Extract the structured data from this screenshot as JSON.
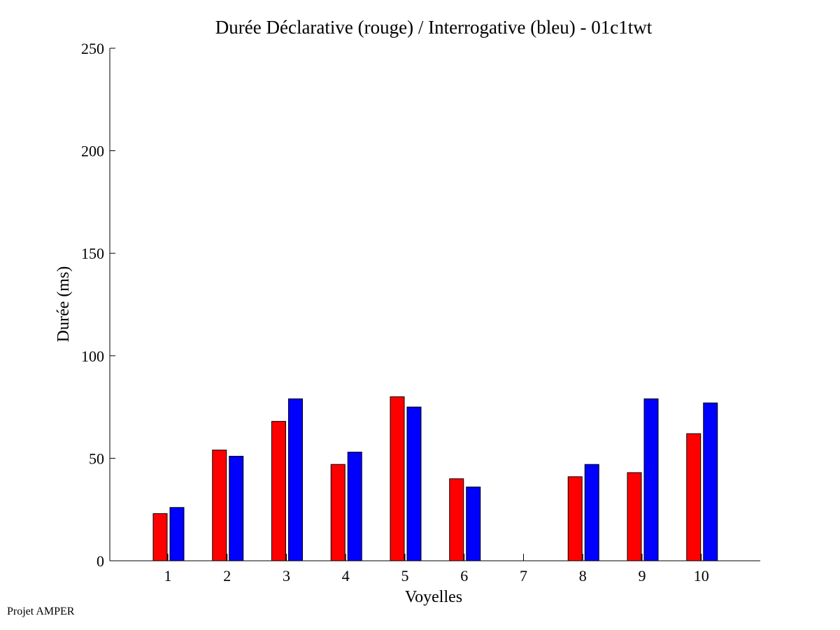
{
  "chart_data": {
    "type": "bar",
    "title": "Durée Déclarative (rouge) / Interrogative (bleu) - 01c1twt",
    "xlabel": "Voyelles",
    "ylabel": "Durée (ms)",
    "categories": [
      "1",
      "2",
      "3",
      "4",
      "5",
      "6",
      "7",
      "8",
      "9",
      "10"
    ],
    "ylim": [
      0,
      250
    ],
    "yticks": [
      "0",
      "50",
      "100",
      "150",
      "200",
      "250"
    ],
    "grid": false,
    "series": [
      {
        "color": "#ff0000",
        "values": [
          23,
          54,
          68,
          47,
          80,
          40,
          0,
          41,
          43,
          62
        ]
      },
      {
        "color": "#0000ff",
        "values": [
          26,
          51,
          79,
          53,
          75,
          36,
          0,
          47,
          79,
          77
        ]
      }
    ]
  },
  "footer": {
    "text": "Projet AMPER"
  }
}
